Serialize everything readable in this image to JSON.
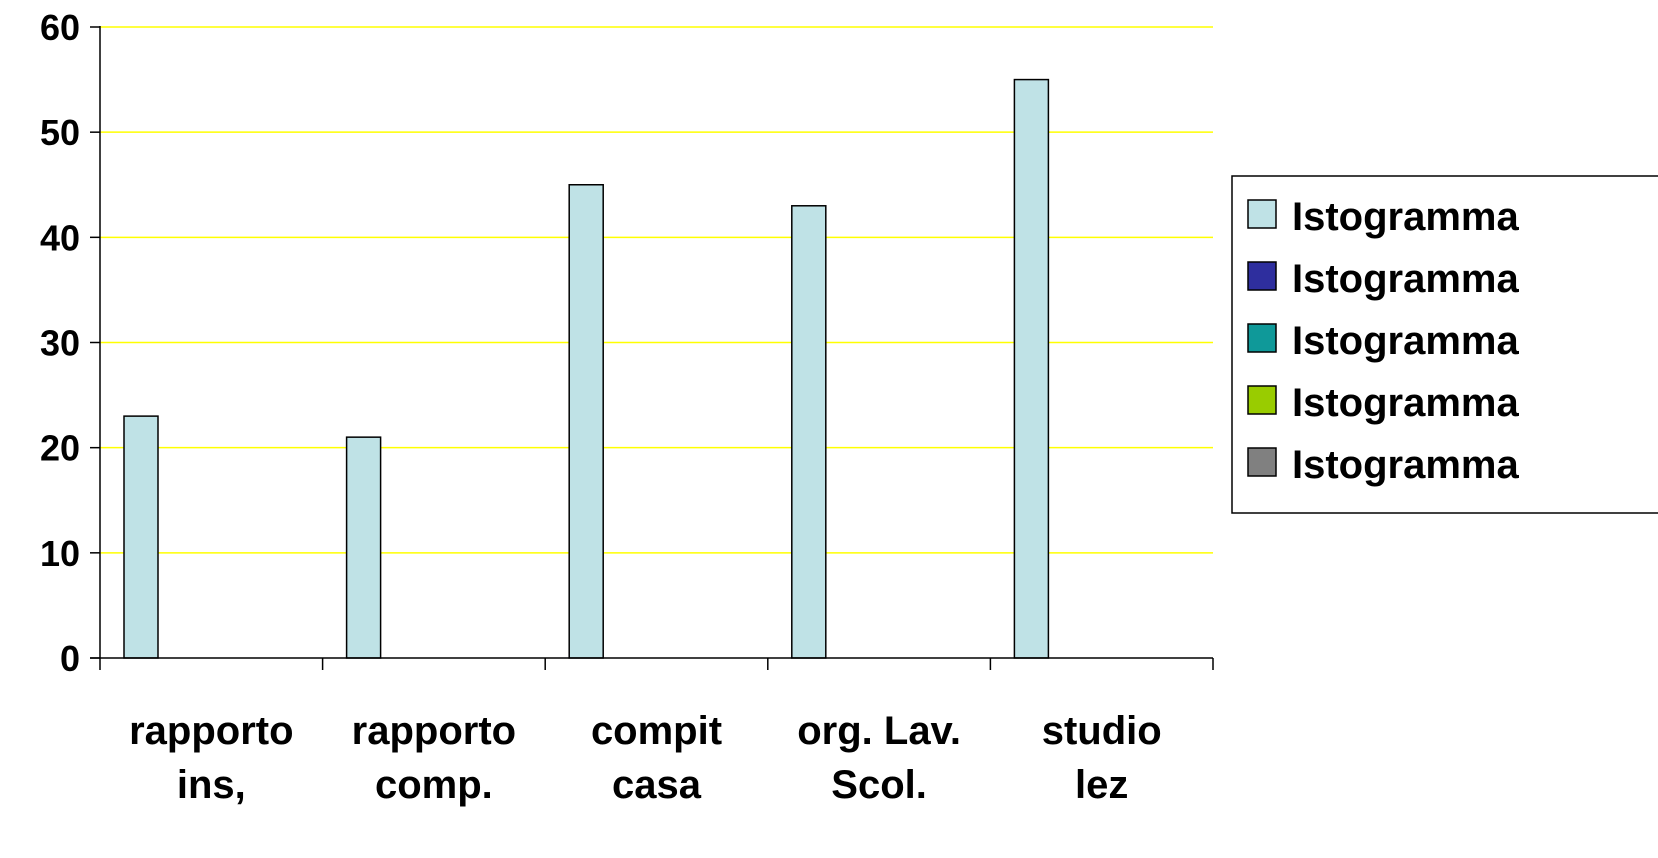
{
  "chart_data": {
    "type": "bar",
    "title": "",
    "xlabel": "",
    "ylabel": "",
    "categories": [
      [
        "rapporto",
        "ins,"
      ],
      [
        "rapporto",
        "comp."
      ],
      [
        "compit",
        "casa"
      ],
      [
        "org. Lav.",
        "Scol."
      ],
      [
        "studio",
        "lez"
      ]
    ],
    "series": [
      {
        "name": "Istogramma",
        "color": "#bfe2e6",
        "values": [
          23,
          21,
          45,
          43,
          55
        ]
      },
      {
        "name": "Istogramma",
        "color": "#2e2e9e",
        "values": [
          null,
          null,
          null,
          null,
          null
        ]
      },
      {
        "name": "Istogramma",
        "color": "#0f9999",
        "values": [
          null,
          null,
          null,
          null,
          null
        ]
      },
      {
        "name": "Istogramma",
        "color": "#99cc00",
        "values": [
          null,
          null,
          null,
          null,
          null
        ]
      },
      {
        "name": "Istogramma",
        "color": "#808080",
        "values": [
          null,
          null,
          null,
          null,
          null
        ]
      }
    ],
    "ylim": [
      0,
      60
    ],
    "yticks": [
      0,
      10,
      20,
      30,
      40,
      50,
      60
    ],
    "grid": true,
    "grid_color": "#ffff00",
    "legend_position": "right"
  }
}
